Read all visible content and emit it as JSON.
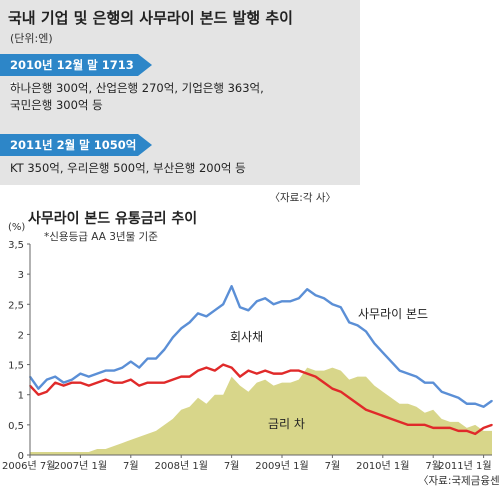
{
  "top_panel": {
    "title": "국내 기업 및 은행의 사무라이 본드 발행 추이",
    "unit": "(단위:엔)",
    "section1_header": "2010년 12월 말 1713억",
    "section1_line1": "하나은행 300억, 산업은행 270억, 기업은행 363억,",
    "section1_line2": "국민은행 300억 등",
    "section2_header": "2011년 2월 말 1050억",
    "section2_line1": "KT 350억, 우리은행 500억, 부산은행 200억 등",
    "source": "〈자료:각 사〉"
  },
  "chart_data": {
    "type": "line",
    "title": "사무라이 본드 유통금리 추이",
    "subtitle": "*신용등급 AA 3년물 기준",
    "ylabel": "(%)",
    "ylim": [
      0,
      3.5
    ],
    "yticks": [
      "3,5",
      "3",
      "2,5",
      "2",
      "1,5",
      "1",
      "0,5",
      "0"
    ],
    "x_ticks": [
      "2006년 7월",
      "2007년 1월",
      "7월",
      "2008년 1월",
      "7월",
      "2009년 1월",
      "7월",
      "2010년 1월",
      "7월",
      "2011년 1월"
    ],
    "x_tick_months": [
      0,
      6,
      12,
      18,
      24,
      30,
      36,
      42,
      48,
      54
    ],
    "x_max": 55,
    "grid": false,
    "series": [
      {
        "name": "사무라이 본드",
        "color": "#5b8fd6",
        "type": "line",
        "x": [
          0,
          1,
          2,
          3,
          4,
          5,
          6,
          7,
          8,
          9,
          10,
          11,
          12,
          13,
          14,
          15,
          16,
          17,
          18,
          19,
          20,
          21,
          22,
          23,
          24,
          25,
          26,
          27,
          28,
          29,
          30,
          31,
          32,
          33,
          34,
          35,
          36,
          37,
          38,
          39,
          40,
          41,
          42,
          43,
          44,
          45,
          46,
          47,
          48,
          49,
          50,
          51,
          52,
          53,
          54,
          55
        ],
        "values": [
          1.3,
          1.1,
          1.25,
          1.3,
          1.2,
          1.25,
          1.35,
          1.3,
          1.35,
          1.4,
          1.4,
          1.45,
          1.55,
          1.45,
          1.6,
          1.6,
          1.75,
          1.95,
          2.1,
          2.2,
          2.35,
          2.3,
          2.4,
          2.5,
          2.8,
          2.45,
          2.4,
          2.55,
          2.6,
          2.5,
          2.55,
          2.55,
          2.6,
          2.75,
          2.65,
          2.6,
          2.5,
          2.45,
          2.2,
          2.15,
          2.05,
          1.85,
          1.7,
          1.55,
          1.4,
          1.35,
          1.3,
          1.2,
          1.2,
          1.05,
          1.0,
          0.95,
          0.85,
          0.85,
          0.8,
          0.9
        ]
      },
      {
        "name": "회사채",
        "color": "#e02a2a",
        "type": "line",
        "x": [
          0,
          1,
          2,
          3,
          4,
          5,
          6,
          7,
          8,
          9,
          10,
          11,
          12,
          13,
          14,
          15,
          16,
          17,
          18,
          19,
          20,
          21,
          22,
          23,
          24,
          25,
          26,
          27,
          28,
          29,
          30,
          31,
          32,
          33,
          34,
          35,
          36,
          37,
          38,
          39,
          40,
          41,
          42,
          43,
          44,
          45,
          46,
          47,
          48,
          49,
          50,
          51,
          52,
          53,
          54,
          55
        ],
        "values": [
          1.15,
          1.0,
          1.05,
          1.2,
          1.15,
          1.2,
          1.2,
          1.15,
          1.2,
          1.25,
          1.2,
          1.2,
          1.25,
          1.15,
          1.2,
          1.2,
          1.2,
          1.25,
          1.3,
          1.3,
          1.4,
          1.45,
          1.4,
          1.5,
          1.45,
          1.3,
          1.4,
          1.35,
          1.4,
          1.35,
          1.35,
          1.4,
          1.4,
          1.35,
          1.3,
          1.2,
          1.1,
          1.05,
          0.95,
          0.85,
          0.75,
          0.7,
          0.65,
          0.6,
          0.55,
          0.5,
          0.5,
          0.5,
          0.45,
          0.45,
          0.45,
          0.4,
          0.4,
          0.35,
          0.45,
          0.5
        ]
      },
      {
        "name": "금리 차",
        "color": "#d8d68a",
        "type": "area",
        "x": [
          0,
          1,
          2,
          3,
          4,
          5,
          6,
          7,
          8,
          9,
          10,
          11,
          12,
          13,
          14,
          15,
          16,
          17,
          18,
          19,
          20,
          21,
          22,
          23,
          24,
          25,
          26,
          27,
          28,
          29,
          30,
          31,
          32,
          33,
          34,
          35,
          36,
          37,
          38,
          39,
          40,
          41,
          42,
          43,
          44,
          45,
          46,
          47,
          48,
          49,
          50,
          51,
          52,
          53,
          54,
          55
        ],
        "values": [
          0.05,
          0.05,
          0.05,
          0.05,
          0.05,
          0.05,
          0.05,
          0.05,
          0.1,
          0.1,
          0.15,
          0.2,
          0.25,
          0.3,
          0.35,
          0.4,
          0.5,
          0.6,
          0.75,
          0.8,
          0.95,
          0.85,
          1.0,
          1.0,
          1.3,
          1.15,
          1.05,
          1.2,
          1.25,
          1.15,
          1.2,
          1.2,
          1.25,
          1.45,
          1.4,
          1.4,
          1.45,
          1.4,
          1.25,
          1.3,
          1.3,
          1.15,
          1.05,
          0.95,
          0.85,
          0.85,
          0.8,
          0.7,
          0.75,
          0.6,
          0.55,
          0.55,
          0.45,
          0.5,
          0.4,
          0.4
        ]
      }
    ],
    "annotations": [
      "사무라이 본드",
      "회사채",
      "금리 차"
    ],
    "source": "〈자료:국제금융센터〉"
  }
}
